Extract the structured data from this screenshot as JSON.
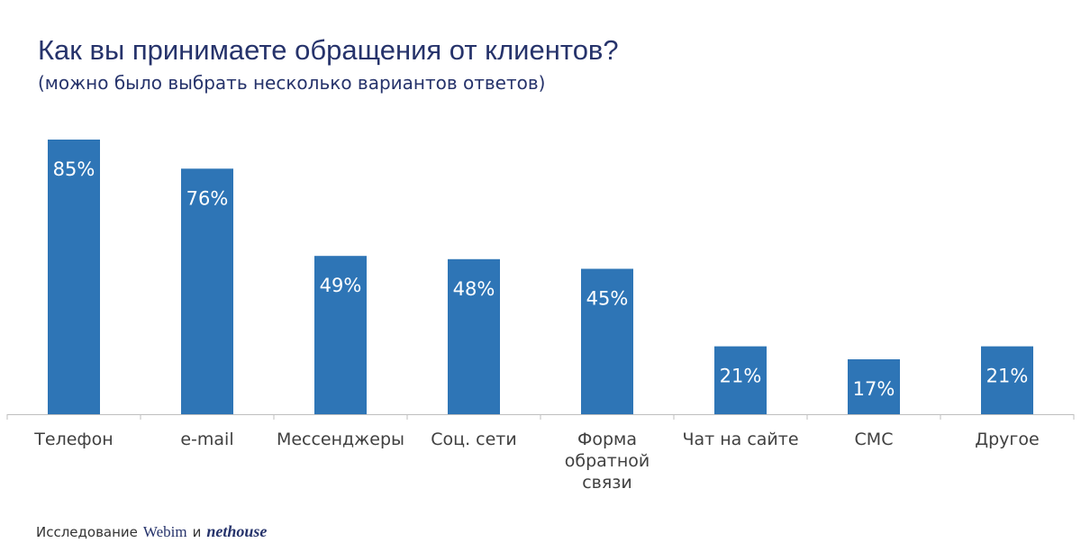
{
  "header": {
    "title": "Как вы принимаете обращения от клиентов?",
    "subtitle": "(можно было выбрать несколько вариантов ответов)"
  },
  "footer": {
    "prefix": "Исследование",
    "brand1": "Webim",
    "conj": "и",
    "brand2": "nethouse"
  },
  "colors": {
    "bar": "#2e75b6",
    "axis": "#bfbfbf",
    "label": "#404040",
    "value_label": "#ffffff"
  },
  "chart_data": {
    "type": "bar",
    "categories": [
      "Телефон",
      "e-mail",
      "Мессенджеры",
      "Соц. сети",
      "Форма обратной связи",
      "Чат на сайте",
      "СМС",
      "Другое"
    ],
    "category_lines": [
      [
        "Телефон"
      ],
      [
        "e-mail"
      ],
      [
        "Мессенджеры"
      ],
      [
        "Соц. сети"
      ],
      [
        "Форма",
        "обратной",
        "связи"
      ],
      [
        "Чат на сайте"
      ],
      [
        "СМС"
      ],
      [
        "Другое"
      ]
    ],
    "values": [
      85,
      76,
      49,
      48,
      45,
      21,
      17,
      21
    ],
    "value_labels": [
      "85%",
      "76%",
      "49%",
      "48%",
      "45%",
      "21%",
      "17%",
      "21%"
    ],
    "ylim": [
      0,
      85
    ],
    "grid": false,
    "legend": "none"
  }
}
